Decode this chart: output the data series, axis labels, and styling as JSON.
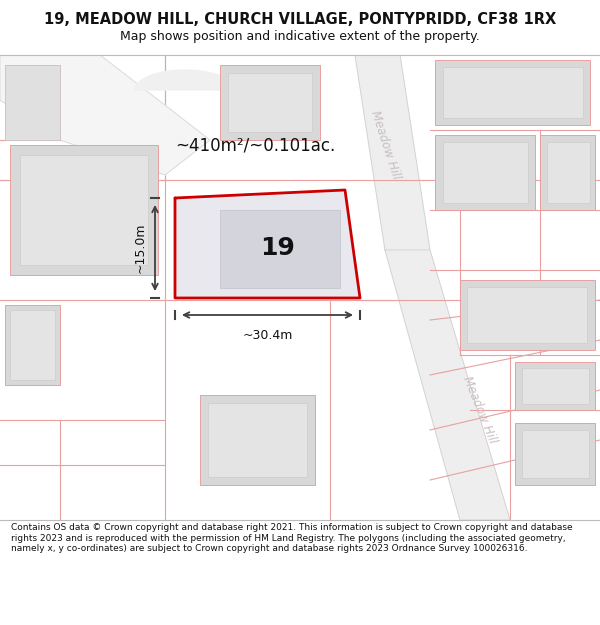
{
  "title": "19, MEADOW HILL, CHURCH VILLAGE, PONTYPRIDD, CF38 1RX",
  "subtitle": "Map shows position and indicative extent of the property.",
  "footer": "Contains OS data © Crown copyright and database right 2021. This information is subject to Crown copyright and database rights 2023 and is reproduced with the permission of HM Land Registry. The polygons (including the associated geometry, namely x, y co-ordinates) are subject to Crown copyright and database rights 2023 Ordnance Survey 100026316.",
  "area_label": "~410m²/~0.101ac.",
  "width_label": "~30.4m",
  "height_label": "~15.0m",
  "plot_number": "19",
  "bg_color": "#ffffff",
  "map_bg": "#ffffff",
  "building_fill": "#d8d8d8",
  "building_inner_fill": "#e8e8e8",
  "subject_fill": "#e8e8ee",
  "subject_outline": "#cc0000",
  "plot_line_color": "#e8a0a0",
  "road_fill": "#eeeeee",
  "road_edge_color": "#cccccc",
  "dim_line_color": "#404040",
  "road_label_color": "#c8c0c0",
  "title_fontsize": 10.5,
  "subtitle_fontsize": 9,
  "footer_fontsize": 6.5
}
